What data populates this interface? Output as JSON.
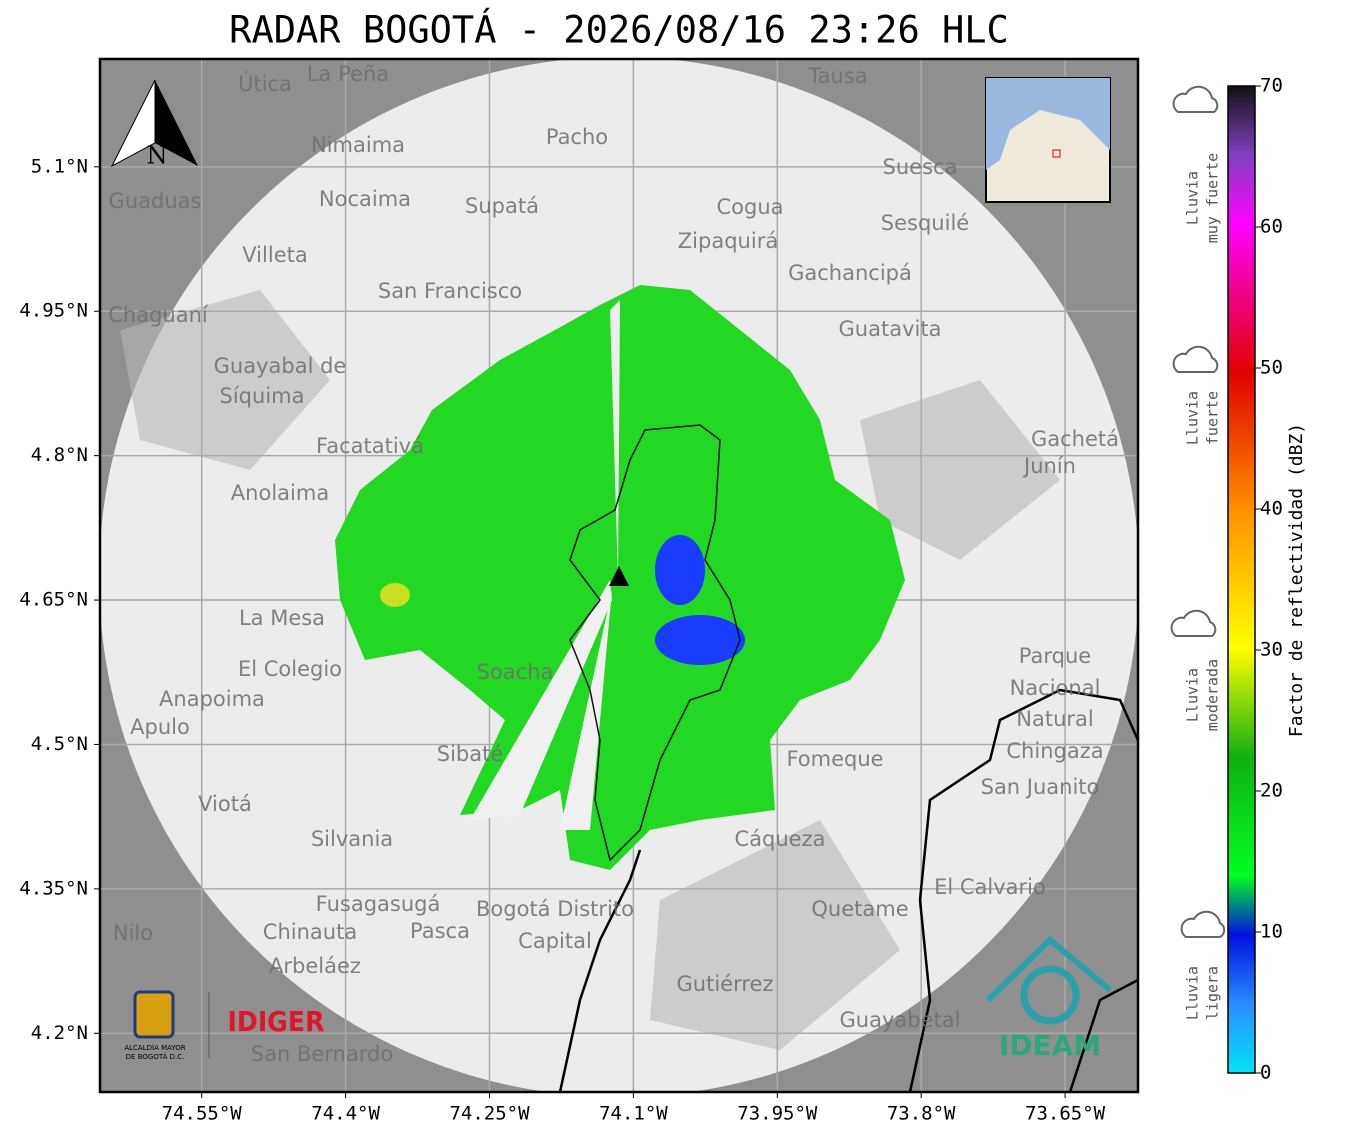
{
  "title": "RADAR BOGOTÁ - 2026/08/16 23:26 HLC",
  "north": "N",
  "map": {
    "xlim": [
      -74.656,
      -73.574
    ],
    "ylim": [
      4.139,
      5.212
    ],
    "xticks": [
      {
        "value": -74.55,
        "label": "74.55°W"
      },
      {
        "value": -74.4,
        "label": "74.4°W"
      },
      {
        "value": -74.25,
        "label": "74.25°W"
      },
      {
        "value": -74.1,
        "label": "74.1°W"
      },
      {
        "value": -73.95,
        "label": "73.95°W"
      },
      {
        "value": -73.8,
        "label": "73.8°W"
      },
      {
        "value": -73.65,
        "label": "73.65°W"
      }
    ],
    "yticks": [
      {
        "value": 5.1,
        "label": "5.1°N"
      },
      {
        "value": 4.95,
        "label": "4.95°N"
      },
      {
        "value": 4.8,
        "label": "4.8°N"
      },
      {
        "value": 4.65,
        "label": "4.65°N"
      },
      {
        "value": 4.5,
        "label": "4.5°N"
      },
      {
        "value": 4.35,
        "label": "4.35°N"
      },
      {
        "value": 4.2,
        "label": "4.2°N"
      }
    ],
    "grid": true
  },
  "colorbar": {
    "label": "Factor de reflectividad (dBZ)",
    "lim": [
      0,
      70
    ],
    "ticks": [
      0,
      10,
      20,
      30,
      40,
      50,
      60,
      70
    ]
  },
  "rain_levels": [
    [
      "Lluvia",
      "muy fuerte"
    ],
    [
      "Lluvia",
      "fuerte"
    ],
    [
      "Lluvia",
      "moderada"
    ],
    [
      "Lluvia",
      "ligera"
    ]
  ],
  "places": [
    "La Peña",
    "Útica",
    "Tausa",
    "Pacho",
    "Nimaima",
    "Nocaima",
    "Supatá",
    "Guaduas",
    "Suesca",
    "Cogua",
    "Sesquilé",
    "Zipaquirá",
    "Villeta",
    "Gachancipá",
    "San Francisco",
    "Chaguaní",
    "Guatavita",
    "Guayabal de",
    "Síquima",
    "Facatativá",
    "Anolaima",
    "Gachetá",
    "Junín",
    "La Mesa",
    "El Colegio",
    "Anapoima",
    "Apulo",
    "Soacha",
    "Sibaté",
    "Fomeque",
    "Parque",
    "Nacional",
    "Natural",
    "Chingaza",
    "San Juanito",
    "Viotá",
    "Silvania",
    "Cáqueza",
    "El Calvario",
    "Fusagasugá",
    "Bogotá Distrito",
    "Capital",
    "Quetame",
    "Nilo",
    "Chinauta",
    "Pasca",
    "Arbeláez",
    "Gutiérrez",
    "Guayabetal",
    "San Bernardo"
  ],
  "logos": {
    "alcaldia_1": "ALCALDÍA MAYOR",
    "alcaldia_2": "DE BOGOTÁ D.C.",
    "idiger": "IDIGER",
    "ideam": "IDEAM"
  }
}
